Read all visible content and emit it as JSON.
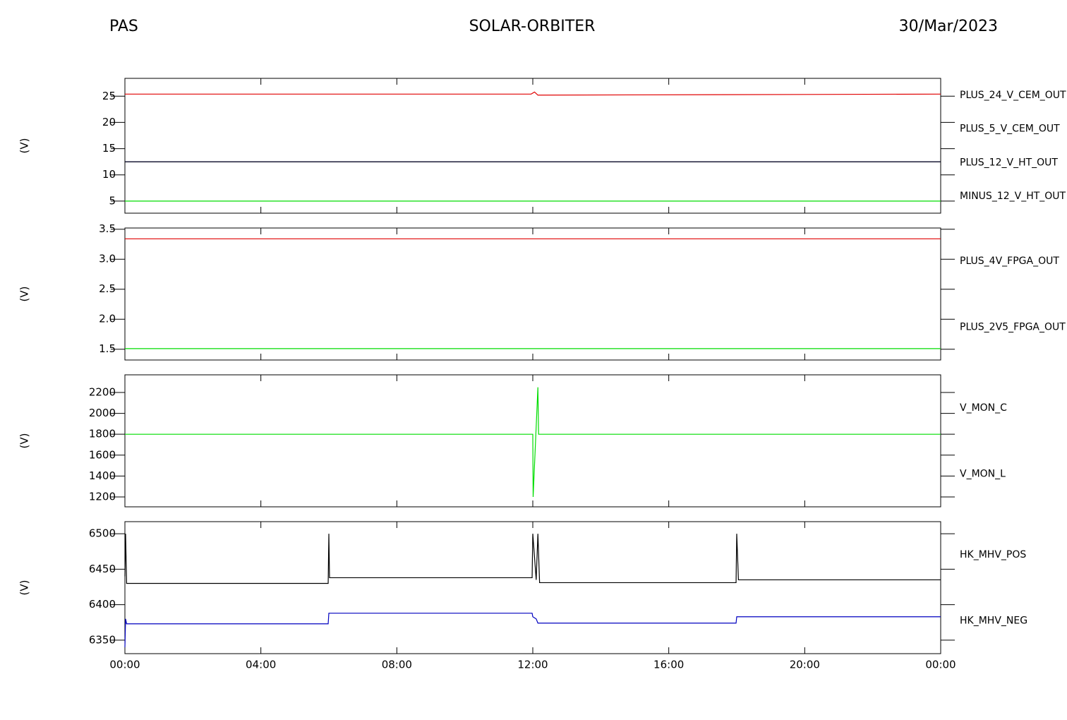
{
  "header": {
    "left": "PAS",
    "center": "SOLAR-ORBITER",
    "right": "30/Mar/2023"
  },
  "chart_data": [
    {
      "type": "line",
      "ylabel": "(V)",
      "ylim": [
        2.7,
        28.4
      ],
      "yticks": [
        5,
        10,
        15,
        20,
        25
      ],
      "x": [
        0,
        11.95,
        12.05,
        12.15,
        24
      ],
      "series": [
        {
          "name": "PLUS_24_V_CEM_OUT",
          "color": "#e00000",
          "values": [
            25.4,
            25.4,
            25.8,
            25.2,
            25.4
          ]
        },
        {
          "name": "PLUS_5_V_CEM_OUT",
          "color": "#00dd00",
          "values": [
            5.0,
            5.0,
            5.0,
            5.0,
            5.0
          ]
        },
        {
          "name": "PLUS_12_V_HT_OUT",
          "color": "#0000c0",
          "values": [
            12.5,
            12.5,
            12.5,
            12.5,
            12.5
          ]
        },
        {
          "name": "MINUS_12_V_HT_OUT",
          "color": "#000000",
          "values": [
            12.5,
            12.5,
            12.5,
            12.5,
            12.5
          ]
        }
      ]
    },
    {
      "type": "line",
      "ylabel": "(V)",
      "ylim": [
        1.32,
        3.52
      ],
      "yticks": [
        {
          "value": 1.5,
          "label": "1.5"
        },
        {
          "value": 2,
          "label": "2.0"
        },
        {
          "value": 2.5,
          "label": "2.5"
        },
        {
          "value": 3,
          "label": "3.0"
        },
        {
          "value": 3.5,
          "label": "3.5"
        }
      ],
      "x": [
        0,
        24
      ],
      "series": [
        {
          "name": "PLUS_4V_FPGA_OUT",
          "color": "#e00000",
          "values": [
            3.34,
            3.34
          ]
        },
        {
          "name": "PLUS_2V5_FPGA_OUT",
          "color": "#00dd00",
          "values": [
            1.51,
            1.51
          ]
        }
      ]
    },
    {
      "type": "line",
      "ylabel": "(V)",
      "ylim": [
        1105,
        2369
      ],
      "yticks": [
        1200,
        1400,
        1600,
        1800,
        2000,
        2200
      ],
      "x": [
        0,
        12.0,
        12.01,
        12.15,
        12.17,
        24
      ],
      "series": [
        {
          "name": "V_MON_C",
          "color": "#e00000",
          "values": [
            null,
            null,
            null,
            null,
            null,
            null
          ]
        },
        {
          "name": "V_MON_L",
          "color": "#00dd00",
          "values": [
            1800,
            1800,
            1200,
            2250,
            1800,
            1800
          ]
        }
      ]
    },
    {
      "type": "line",
      "ylabel": "(V)",
      "ylim": [
        6331,
        6517
      ],
      "yticks": [
        6350,
        6400,
        6450,
        6500
      ],
      "xlim": [
        0,
        24
      ],
      "xticks": [
        {
          "value": 0,
          "label": "00:00"
        },
        {
          "value": 4,
          "label": "04:00"
        },
        {
          "value": 8,
          "label": "08:00"
        },
        {
          "value": 12,
          "label": "12:00"
        },
        {
          "value": 16,
          "label": "16:00"
        },
        {
          "value": 20,
          "label": "20:00"
        },
        {
          "value": 24,
          "label": "00:00"
        }
      ],
      "x": [
        0,
        0.02,
        0.05,
        5.98,
        6.0,
        6.02,
        11.98,
        12.0,
        12.1,
        12.15,
        12.2,
        17.98,
        18.0,
        18.05,
        24
      ],
      "series": [
        {
          "name": "HK_MHV_POS",
          "color": "#000000",
          "values": [
            6440,
            6500,
            6430,
            6430,
            6500,
            6438,
            6438,
            6500,
            6435,
            6500,
            6431,
            6431,
            6500,
            6435,
            6435
          ]
        },
        {
          "name": "HK_MHV_NEG",
          "color": "#0000c0",
          "values": [
            6340,
            6380,
            6373,
            6373,
            6388,
            6388,
            6388,
            6383,
            6380,
            6374,
            6374,
            6374,
            6383,
            6383,
            6383
          ]
        }
      ]
    }
  ]
}
